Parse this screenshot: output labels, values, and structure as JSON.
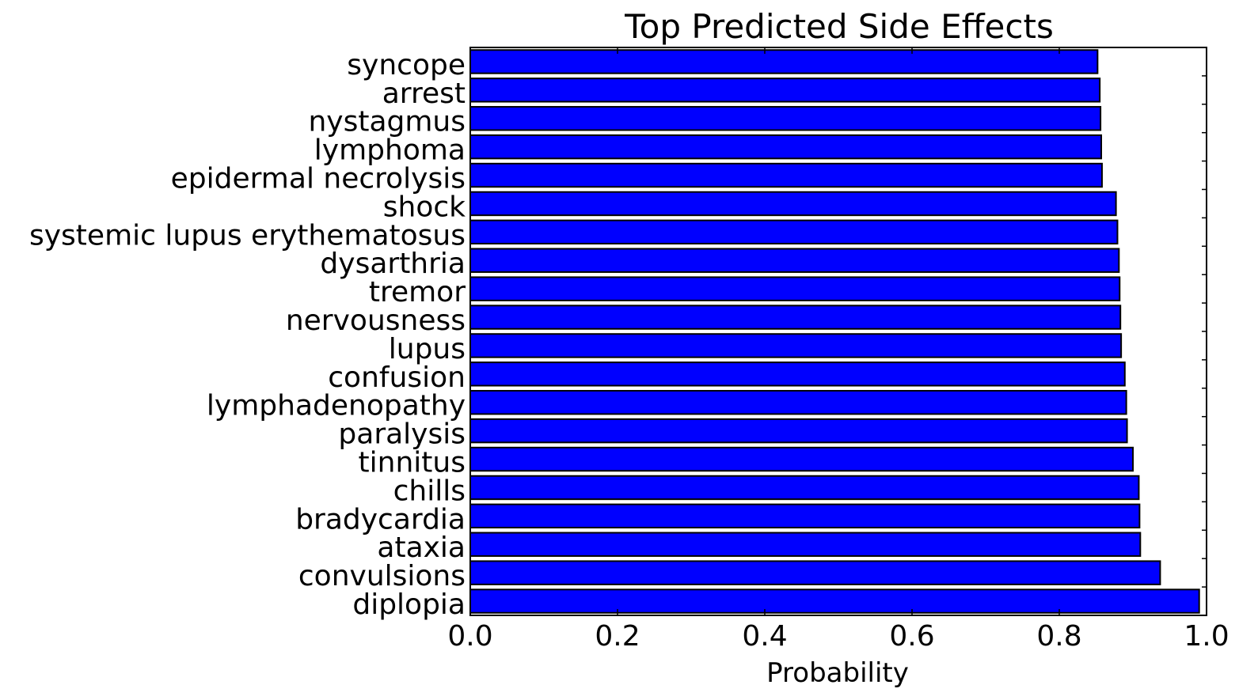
{
  "chart_data": {
    "type": "bar",
    "orientation": "horizontal",
    "title": "Top Predicted Side Effects",
    "xlabel": "Probability",
    "ylabel": "",
    "xlim": [
      0.0,
      1.0
    ],
    "xticks": [
      "0.0",
      "0.2",
      "0.4",
      "0.6",
      "0.8",
      "1.0"
    ],
    "bar_color": "#0000ff",
    "grid": false,
    "categories": [
      "syncope",
      "arrest",
      "nystagmus",
      "lymphoma",
      "epidermal necrolysis",
      "shock",
      "systemic lupus erythematosus",
      "dysarthria",
      "tremor",
      "nervousness",
      "lupus",
      "confusion",
      "lymphadenopathy",
      "paralysis",
      "tinnitus",
      "chills",
      "bradycardia",
      "ataxia",
      "convulsions",
      "diplopia"
    ],
    "values": [
      0.852,
      0.855,
      0.856,
      0.857,
      0.858,
      0.877,
      0.879,
      0.881,
      0.882,
      0.883,
      0.884,
      0.889,
      0.891,
      0.892,
      0.9,
      0.908,
      0.909,
      0.91,
      0.937,
      0.99
    ]
  }
}
